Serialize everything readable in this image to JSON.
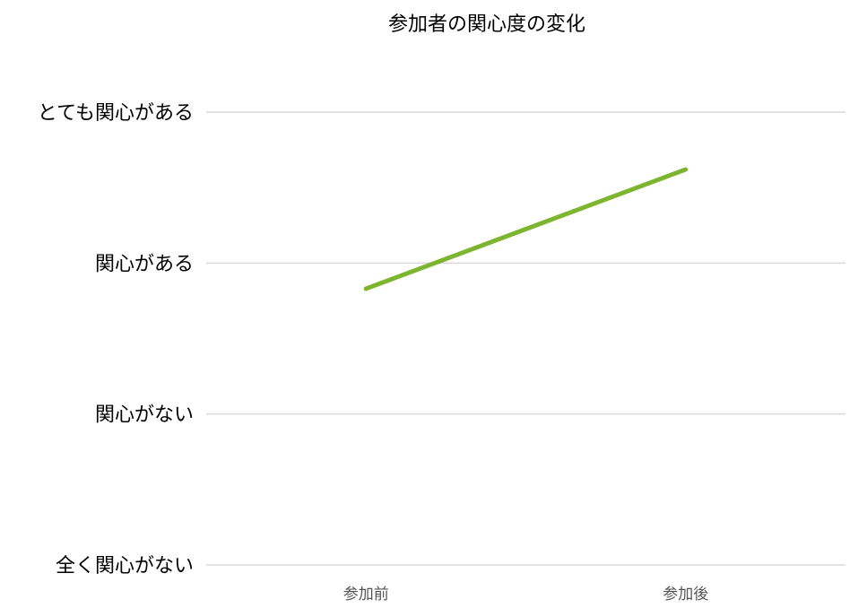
{
  "chart_data": {
    "type": "line",
    "title": "参加者の関心度の変化",
    "categories": [
      "参加前",
      "参加後"
    ],
    "y_ticks": [
      "全く関心がない",
      "関心がない",
      "関心がある",
      "とても関心がある"
    ],
    "ylim": [
      1,
      4
    ],
    "grid": true,
    "legend": "none",
    "series": [
      {
        "values": [
          2.83,
          3.62
        ],
        "color": "#7db52e"
      }
    ]
  }
}
